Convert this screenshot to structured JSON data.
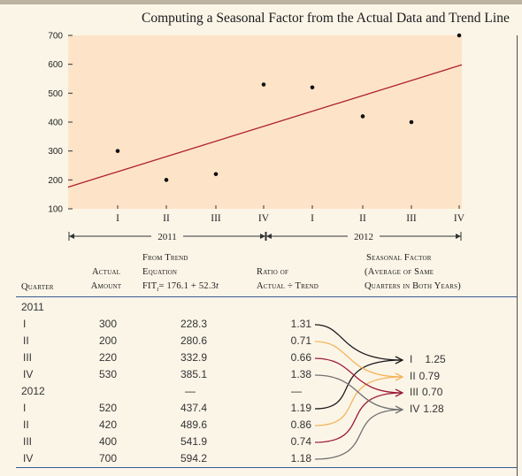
{
  "title": "Computing a Seasonal Factor from the Actual Data and Trend Line",
  "chart_data": {
    "type": "scatter",
    "title": "Computing a Seasonal Factor from the Actual Data and Trend Line",
    "yticks": [
      100,
      200,
      300,
      400,
      500,
      600,
      700
    ],
    "ylim": [
      100,
      700
    ],
    "xticks": [
      "I",
      "II",
      "III",
      "IV",
      "I",
      "II",
      "III",
      "IV"
    ],
    "years": [
      "2011",
      "2012"
    ],
    "series": [
      {
        "values": [
          300,
          200,
          220,
          530,
          520,
          420,
          400,
          700
        ]
      }
    ],
    "trend": {
      "intercept": 176.1,
      "slope": 52.3
    },
    "grid": false
  },
  "table": {
    "headers": {
      "quarter": "Quarter",
      "actual": [
        "Actual",
        "Amount"
      ],
      "trend": [
        "From Trend",
        "Equation",
        "FIT",
        "t",
        "= 176.1 + 52.3",
        "t"
      ],
      "ratio": [
        "Ratio of",
        "Actual ÷ Trend"
      ],
      "factor": [
        "Seasonal Factor",
        "(Average of Same",
        "Quarters in Both Years)"
      ]
    },
    "rows": [
      {
        "quarter": "2011",
        "actual": "",
        "trend": "",
        "ratio": ""
      },
      {
        "quarter": "I",
        "actual": "300",
        "trend": "228.3",
        "ratio": "1.31"
      },
      {
        "quarter": "II",
        "actual": "200",
        "trend": "280.6",
        "ratio": "0.71"
      },
      {
        "quarter": "III",
        "actual": "220",
        "trend": "332.9",
        "ratio": "0.66"
      },
      {
        "quarter": "IV",
        "actual": "530",
        "trend": "385.1",
        "ratio": "1.38"
      },
      {
        "quarter": "2012",
        "actual": "",
        "trend": "—",
        "ratio": "—"
      },
      {
        "quarter": "I",
        "actual": "520",
        "trend": "437.4",
        "ratio": "1.19"
      },
      {
        "quarter": "II",
        "actual": "420",
        "trend": "489.6",
        "ratio": "0.86"
      },
      {
        "quarter": "III",
        "actual": "400",
        "trend": "541.9",
        "ratio": "0.74"
      },
      {
        "quarter": "IV",
        "actual": "700",
        "trend": "594.2",
        "ratio": "1.18"
      }
    ],
    "factors": [
      {
        "quarter": "I",
        "value": "1.25"
      },
      {
        "quarter": "II",
        "value": "0.79"
      },
      {
        "quarter": "III",
        "value": "0.70"
      },
      {
        "quarter": "IV",
        "value": "1.28"
      }
    ]
  },
  "colors": {
    "plot_bg": "#fde4c8",
    "trend_line": "#b0222b",
    "arrow_q1": "#1a1a1a",
    "arrow_q2": "#f5b45a",
    "arrow_q3": "#9e1b3a",
    "arrow_q4": "#707070",
    "rule": "#3a5a93"
  }
}
